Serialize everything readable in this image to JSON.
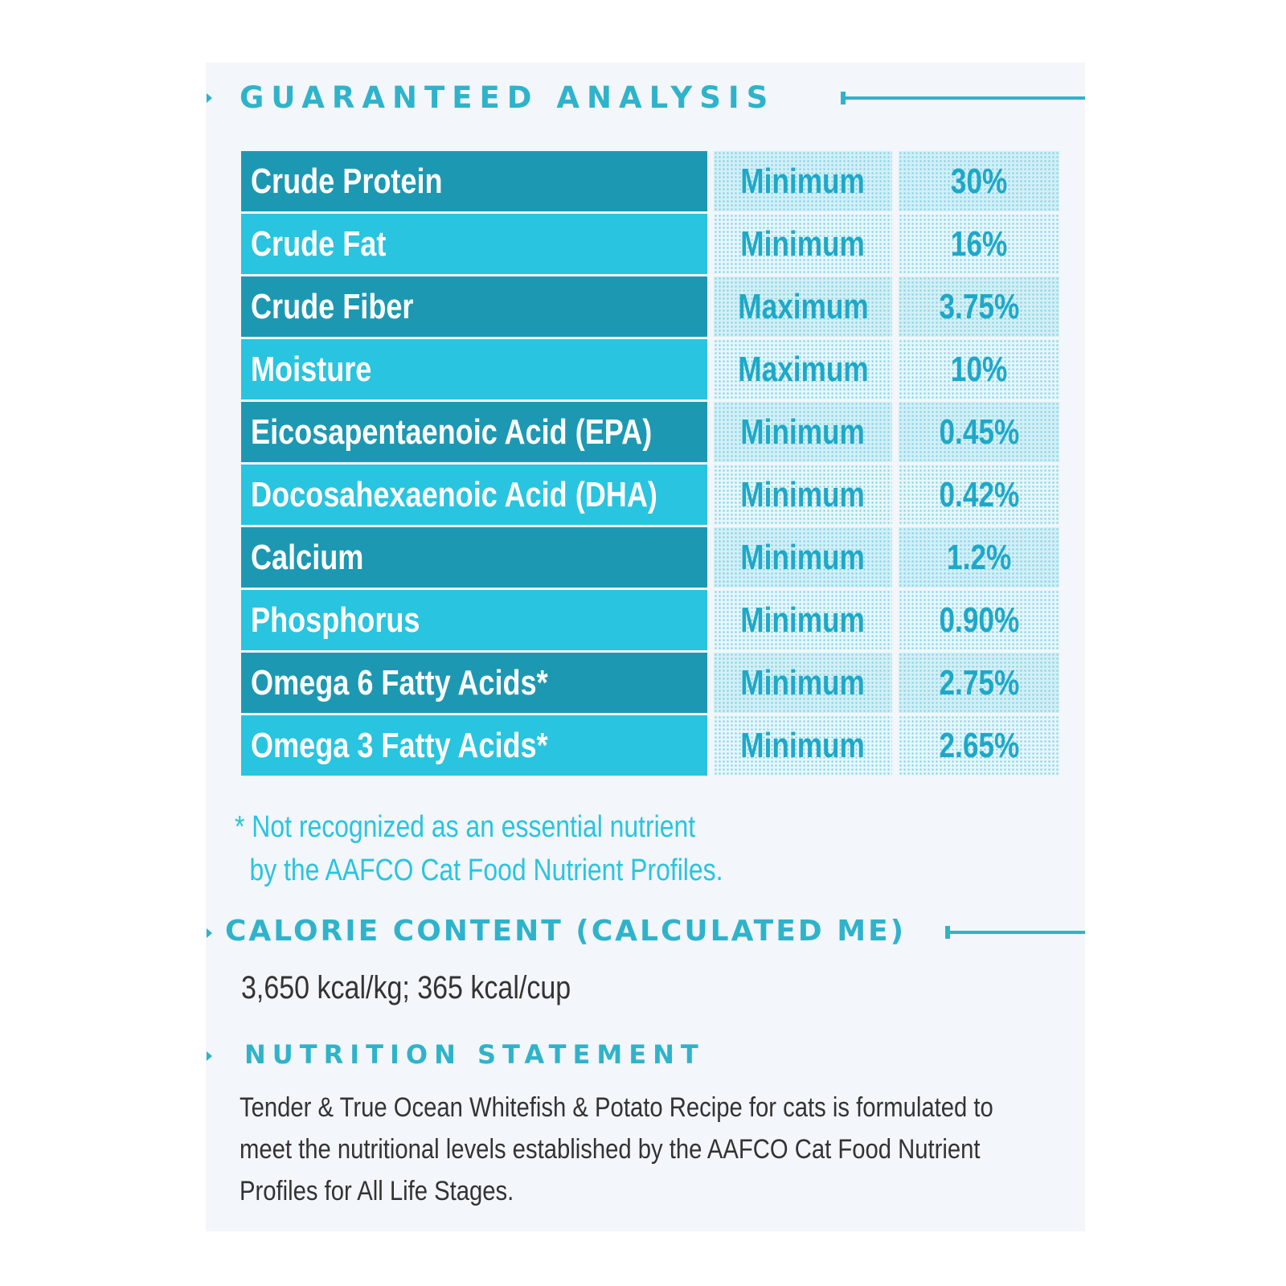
{
  "guaranteed_analysis": {
    "heading": "GUARANTEED ANALYSIS",
    "rows": [
      {
        "nutrient": "Crude Protein",
        "qualifier": "Minimum",
        "value": "30%"
      },
      {
        "nutrient": "Crude Fat",
        "qualifier": "Minimum",
        "value": "16%"
      },
      {
        "nutrient": "Crude Fiber",
        "qualifier": "Maximum",
        "value": "3.75%"
      },
      {
        "nutrient": "Moisture",
        "qualifier": "Maximum",
        "value": "10%"
      },
      {
        "nutrient": "Eicosapentaenoic Acid  (EPA)",
        "qualifier": "Minimum",
        "value": "0.45%"
      },
      {
        "nutrient": "Docosahexaenoic Acid  (DHA)",
        "qualifier": "Minimum",
        "value": "0.42%"
      },
      {
        "nutrient": "Calcium",
        "qualifier": "Minimum",
        "value": "1.2%"
      },
      {
        "nutrient": "Phosphorus",
        "qualifier": "Minimum",
        "value": "0.90%"
      },
      {
        "nutrient": "Omega 6 Fatty Acids*",
        "qualifier": "Minimum",
        "value": "2.75%"
      },
      {
        "nutrient": "Omega 3 Fatty Acids*",
        "qualifier": "Minimum",
        "value": "2.65%"
      }
    ],
    "footnote_line1": "* Not recognized as an essential nutrient",
    "footnote_line2": "by the AAFCO Cat Food Nutrient Profiles."
  },
  "calorie_content": {
    "heading": "CALORIE CONTENT (CALCULATED ME)",
    "text": "3,650 kcal/kg; 365 kcal/cup"
  },
  "nutrition_statement": {
    "heading": "NUTRITION STATEMENT",
    "line1": "Tender & True Ocean Whitefish & Potato Recipe for cats is formulated to",
    "line2": "meet the nutritional levels established by the AAFCO Cat Food Nutrient",
    "line3": "Profiles for All Life Stages."
  },
  "colors": {
    "accent": "#2fb3cb",
    "row_dark": "#1d98b3",
    "row_light": "#29c4df",
    "body_text": "#333333"
  }
}
